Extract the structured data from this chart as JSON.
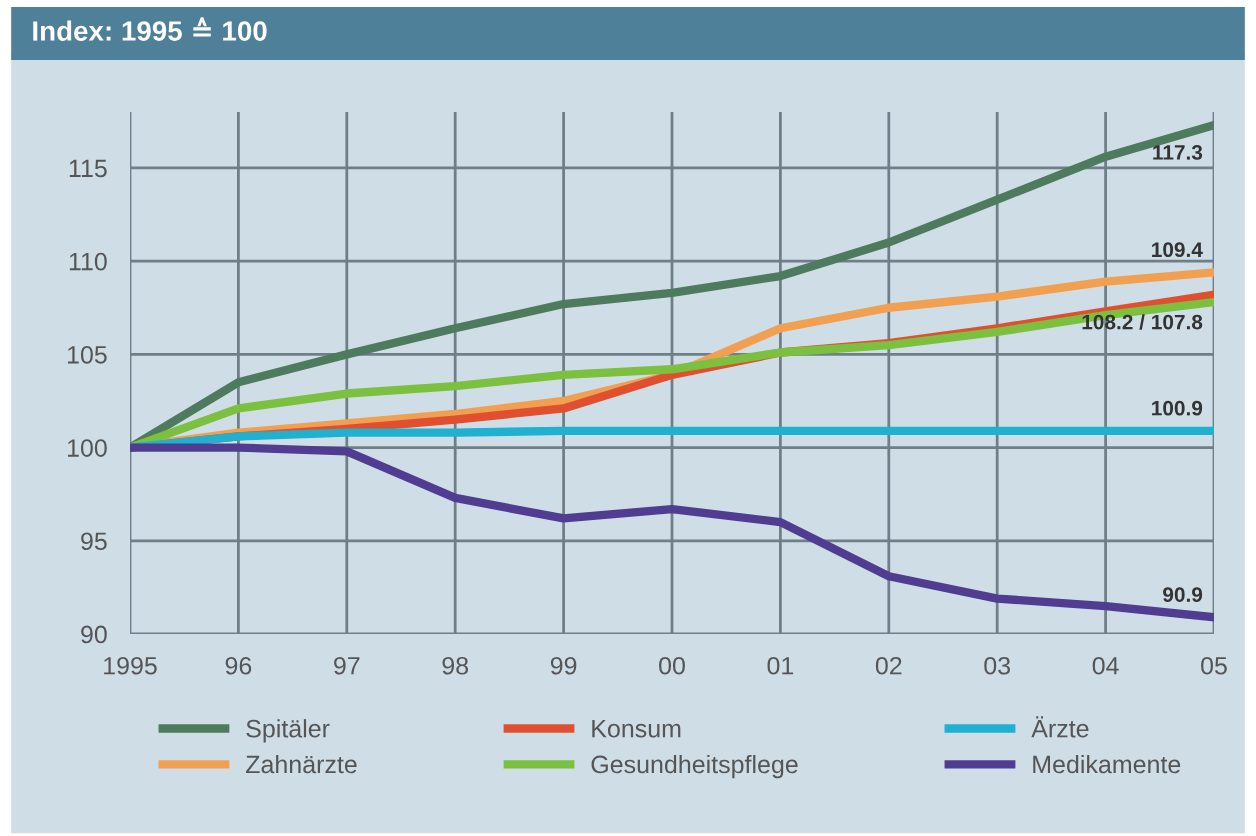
{
  "chart_data": {
    "type": "line",
    "title": "Index: 1995 ≙ 100",
    "x": [
      1995,
      1996,
      1997,
      1998,
      1999,
      2000,
      2001,
      2002,
      2003,
      2004,
      2005
    ],
    "series": [
      {
        "name": "Spitäler",
        "color": "#4e7a5e",
        "values": [
          100,
          103.5,
          105.0,
          106.4,
          107.7,
          108.3,
          109.2,
          111.0,
          113.3,
          115.6,
          117.3
        ]
      },
      {
        "name": "Zahnärzte",
        "color": "#f0a050",
        "values": [
          100,
          100.8,
          101.3,
          101.8,
          102.5,
          103.9,
          106.4,
          107.5,
          108.1,
          108.9,
          109.4
        ]
      },
      {
        "name": "Konsum",
        "color": "#e05030",
        "values": [
          100,
          100.6,
          101.0,
          101.5,
          102.1,
          103.9,
          105.1,
          105.6,
          106.4,
          107.3,
          108.2
        ]
      },
      {
        "name": "Gesundheitspflege",
        "color": "#7cc040",
        "values": [
          100,
          102.1,
          102.9,
          103.3,
          103.9,
          104.2,
          105.1,
          105.5,
          106.2,
          107.1,
          107.8
        ]
      },
      {
        "name": "Ärzte",
        "color": "#20b0d0",
        "values": [
          100,
          100.6,
          100.8,
          100.8,
          100.9,
          100.9,
          100.9,
          100.9,
          100.9,
          100.9,
          100.9
        ]
      },
      {
        "name": "Medikamente",
        "color": "#503c90",
        "values": [
          100,
          100.0,
          99.8,
          97.3,
          96.2,
          96.7,
          96.0,
          93.1,
          91.9,
          91.5,
          90.9
        ]
      }
    ],
    "xlim": [
      1995,
      2005
    ],
    "xticks": [
      {
        "value": 1995,
        "label": "1995"
      },
      {
        "value": 1996,
        "label": "96"
      },
      {
        "value": 1997,
        "label": "97"
      },
      {
        "value": 1998,
        "label": "98"
      },
      {
        "value": 1999,
        "label": "99"
      },
      {
        "value": 2000,
        "label": "00"
      },
      {
        "value": 2001,
        "label": "01"
      },
      {
        "value": 2002,
        "label": "02"
      },
      {
        "value": 2003,
        "label": "03"
      },
      {
        "value": 2004,
        "label": "04"
      },
      {
        "value": 2005,
        "label": "05"
      }
    ],
    "ylim": [
      90,
      118
    ],
    "yticks": [
      90,
      95,
      100,
      105,
      110,
      115
    ],
    "annotations": [
      {
        "text": "117.3",
        "y": 117.3
      },
      {
        "text": "109.4",
        "y": 109.4
      },
      {
        "text": "108.2 / 107.8",
        "y": 108.2
      },
      {
        "text": "100.9",
        "y": 100.9
      },
      {
        "text": "90.9",
        "y": 90.9
      }
    ],
    "grid": true,
    "legend": "bottom",
    "marker": "none",
    "line_style": "solid"
  }
}
